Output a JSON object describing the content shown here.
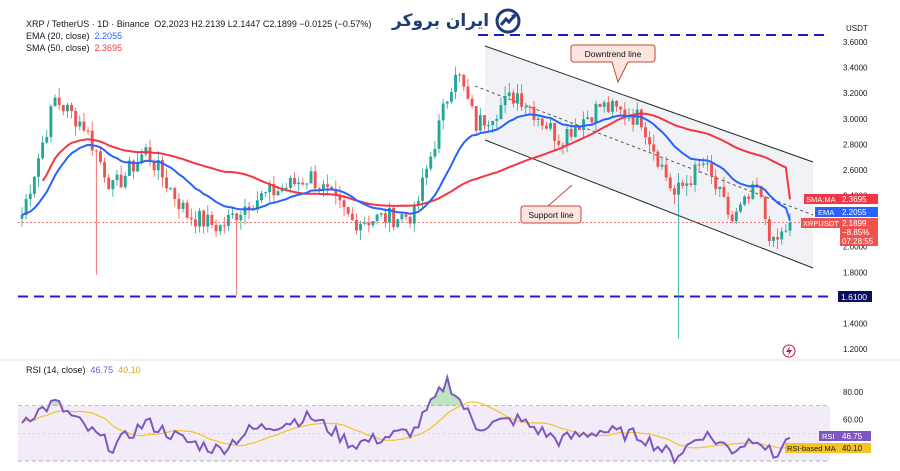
{
  "header": {
    "symbol": "XRP / TetherUS · 1D · Binance",
    "ohlc": "O2.2023 H2.2139 L2.1447 C2.1899 −0.0125 (−0.57%)",
    "ema_label": "EMA (20, close)",
    "ema_value": "2.2055",
    "sma_label": "SMA (50, close)",
    "sma_value": "2.3695",
    "rsi_label": "RSI (14, close)",
    "rsi_value": "46.75",
    "rsi_ma_value": "40.10",
    "currency": "USDT"
  },
  "logo_text": "ایران بروکر",
  "annotations": {
    "downtrend": "Downtrend line",
    "support": "Support line"
  },
  "tags": {
    "sma": {
      "label": "SMA:MA",
      "value": "2.3695"
    },
    "ema": {
      "label": "EMA",
      "value": "2.2055"
    },
    "price": {
      "label": "XRPUSDT",
      "value": "2.1899",
      "change": "−8.85%",
      "timer": "07:28:55"
    },
    "level": "1.6100",
    "rsi": {
      "label": "RSI",
      "value": "46.75"
    },
    "rsi_ma": {
      "label": "RSI-based MA",
      "value": "40.10"
    }
  },
  "colors": {
    "up": "#26a69a",
    "down": "#ef5350",
    "ema": "#2962ff",
    "sma": "#f23645",
    "rsi": "#7e57c2",
    "rsi_ma": "#f7c325",
    "level": "#1c1ccc"
  },
  "chart_data": [
    {
      "type": "candlestick",
      "title": "XRP / TetherUS · 1D · Binance",
      "y_ticks": [
        1.2,
        1.4,
        1.6,
        1.8,
        2.0,
        2.2,
        2.4,
        2.6,
        2.8,
        3.0,
        3.2,
        3.4,
        3.6
      ],
      "ylim": [
        1.15,
        3.65
      ],
      "last_price": 2.1899,
      "horizontal_levels": [
        1.61,
        3.66
      ],
      "key_points": [
        {
          "t": 0,
          "price": 2.25
        },
        {
          "t": 8,
          "price": 3.15
        },
        {
          "t": 15,
          "price": 2.95
        },
        {
          "t": 22,
          "price": 2.45
        },
        {
          "t": 30,
          "price": 2.75
        },
        {
          "t": 40,
          "price": 2.25
        },
        {
          "t": 48,
          "price": 2.15
        },
        {
          "t": 55,
          "price": 2.35
        },
        {
          "t": 70,
          "price": 2.55
        },
        {
          "t": 80,
          "price": 2.2
        },
        {
          "t": 95,
          "price": 2.25
        },
        {
          "t": 105,
          "price": 3.4
        },
        {
          "t": 110,
          "price": 2.95
        },
        {
          "t": 120,
          "price": 3.2
        },
        {
          "t": 130,
          "price": 2.85
        },
        {
          "t": 140,
          "price": 3.1
        },
        {
          "t": 150,
          "price": 3.0
        },
        {
          "t": 158,
          "price": 2.4
        },
        {
          "t": 165,
          "price": 2.65
        },
        {
          "t": 172,
          "price": 2.2
        },
        {
          "t": 178,
          "price": 2.45
        },
        {
          "t": 182,
          "price": 2.0
        },
        {
          "t": 186,
          "price": 2.19
        }
      ]
    },
    {
      "type": "line",
      "title": "RSI (14, close)",
      "y_ticks": [
        60.0,
        80.0
      ],
      "ylim": [
        30,
        90
      ],
      "last_rsi": 46.75,
      "last_ma": 40.1,
      "key_points": [
        {
          "t": 0,
          "rsi": 60
        },
        {
          "t": 8,
          "rsi": 72
        },
        {
          "t": 15,
          "rsi": 55
        },
        {
          "t": 22,
          "rsi": 40
        },
        {
          "t": 30,
          "rsi": 58
        },
        {
          "t": 40,
          "rsi": 44
        },
        {
          "t": 48,
          "rsi": 38
        },
        {
          "t": 55,
          "rsi": 52
        },
        {
          "t": 70,
          "rsi": 62
        },
        {
          "t": 80,
          "rsi": 42
        },
        {
          "t": 95,
          "rsi": 52
        },
        {
          "t": 103,
          "rsi": 88
        },
        {
          "t": 110,
          "rsi": 55
        },
        {
          "t": 120,
          "rsi": 60
        },
        {
          "t": 130,
          "rsi": 45
        },
        {
          "t": 140,
          "rsi": 52
        },
        {
          "t": 150,
          "rsi": 48
        },
        {
          "t": 158,
          "rsi": 33
        },
        {
          "t": 165,
          "rsi": 50
        },
        {
          "t": 172,
          "rsi": 38
        },
        {
          "t": 178,
          "rsi": 48
        },
        {
          "t": 182,
          "rsi": 33
        },
        {
          "t": 186,
          "rsi": 46.75
        }
      ]
    }
  ]
}
